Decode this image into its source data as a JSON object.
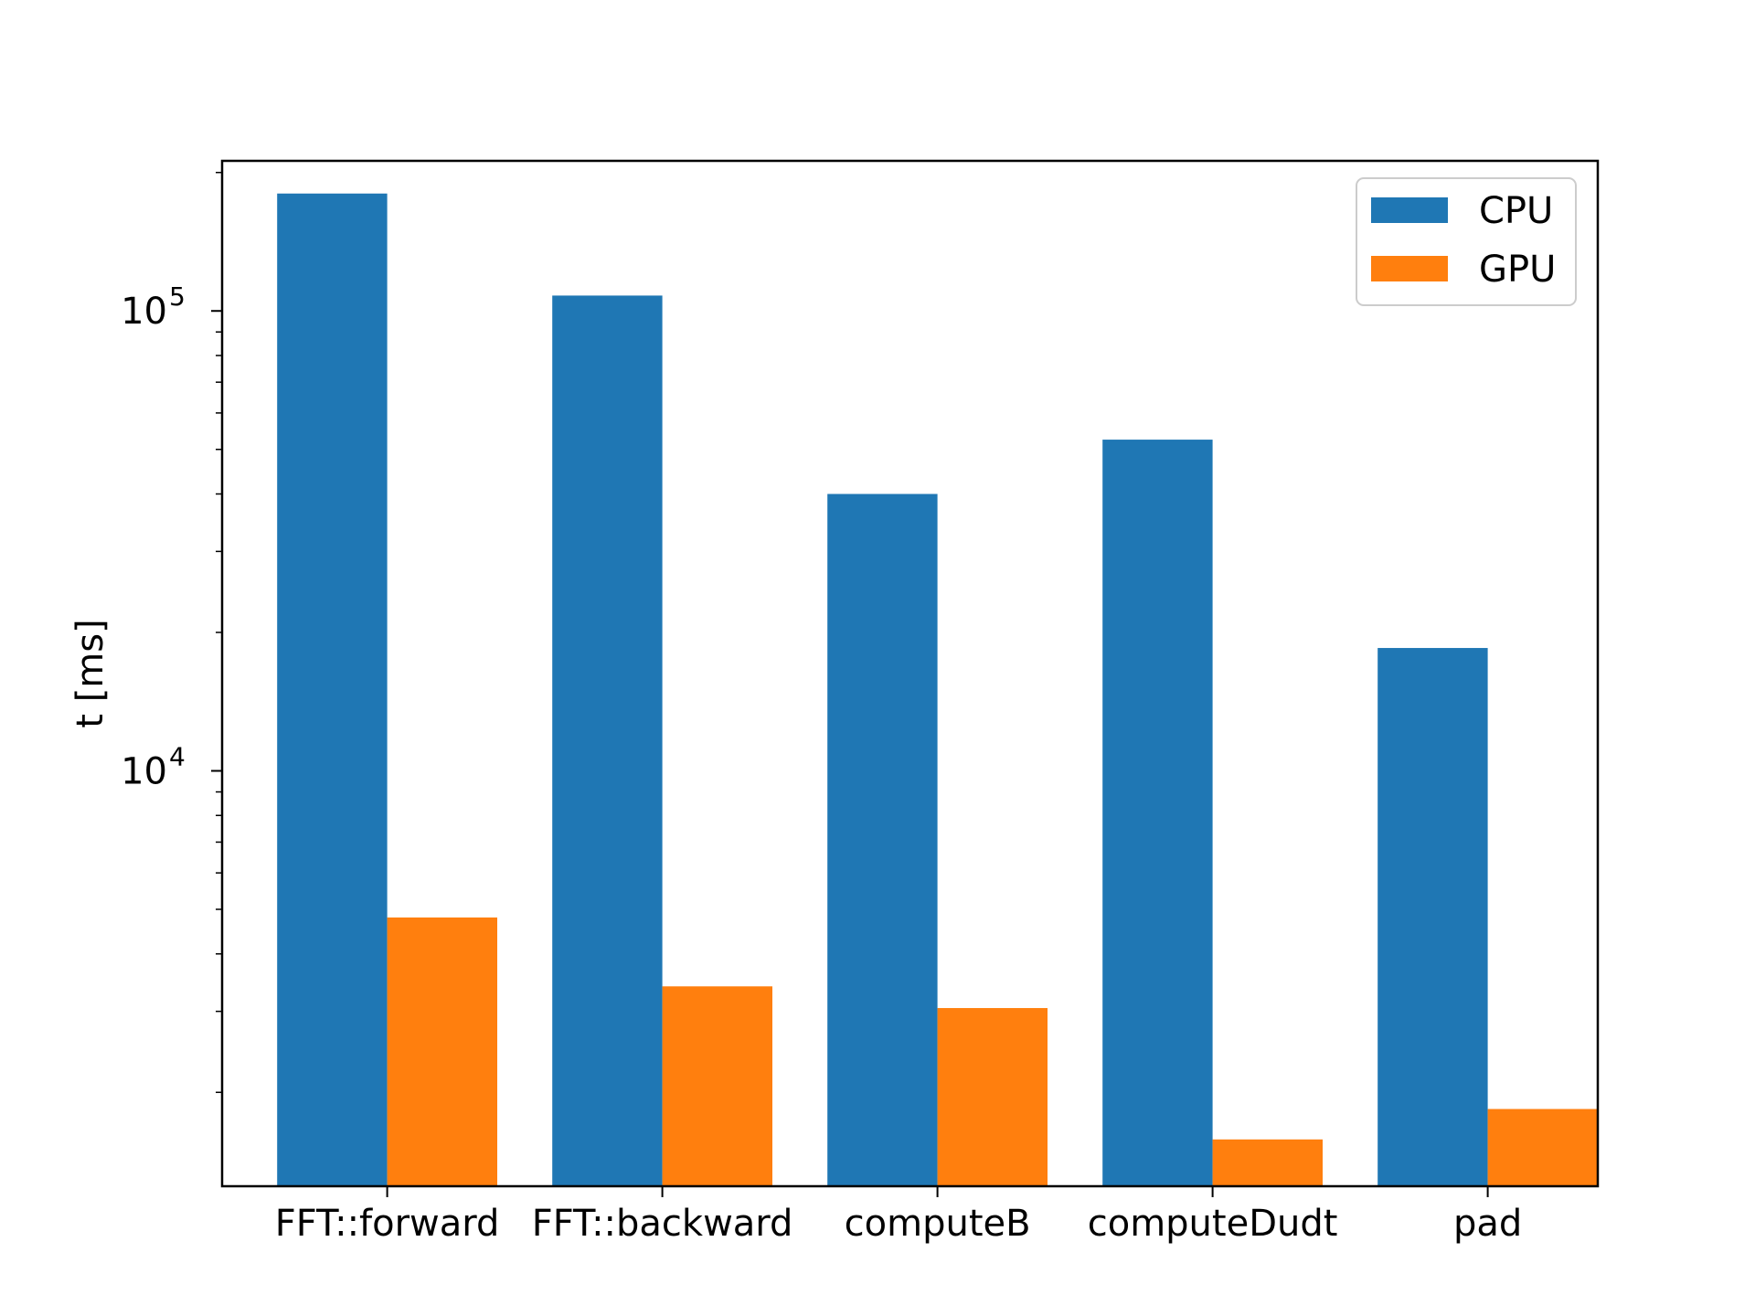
{
  "chart_data": {
    "type": "bar",
    "categories": [
      "FFT::forward",
      "FFT::backward",
      "computeB",
      "computeDudt",
      "pad"
    ],
    "series": [
      {
        "name": "CPU",
        "values": [
          180000,
          108000,
          40000,
          52500,
          18500
        ],
        "color": "#1f77b4"
      },
      {
        "name": "GPU",
        "values": [
          4800,
          3400,
          3050,
          1580,
          1840
        ],
        "color": "#ff7f0e"
      }
    ],
    "title": "",
    "xlabel": "",
    "ylabel": "t [ms]",
    "yscale": "log",
    "ylim": [
      1250,
      212000
    ],
    "yticks": [
      {
        "value": 10000,
        "base": "10",
        "exp": "4"
      },
      {
        "value": 100000,
        "base": "10",
        "exp": "5"
      }
    ],
    "grid": false,
    "legend_position": "top-right"
  }
}
